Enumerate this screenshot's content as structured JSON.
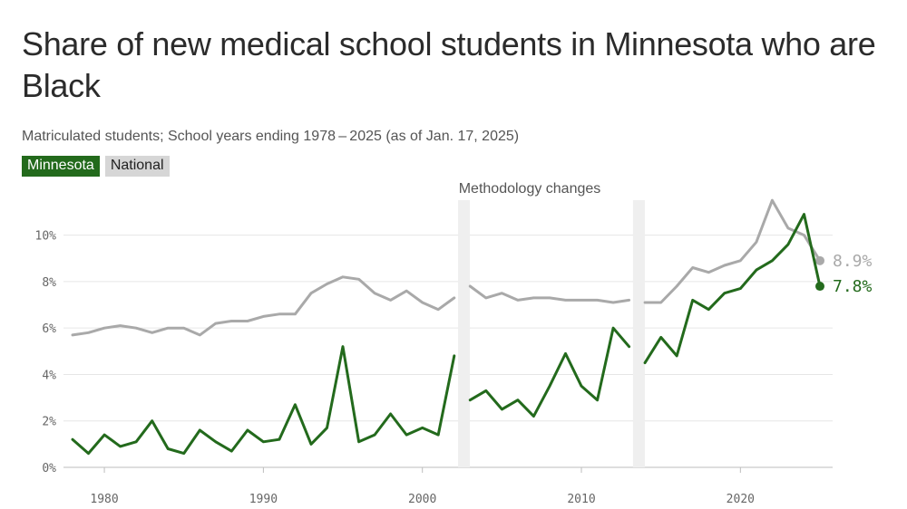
{
  "chart_data": {
    "type": "line",
    "title": "Share of new medical school students in Minnesota who are Black",
    "subtitle": "Matriculated students; School years ending 1978 – 2025 (as of Jan. 17, 2025)",
    "legend": [
      "Minnesota",
      "National"
    ],
    "annotation": "Methodology changes",
    "methodology_change_years": [
      2003,
      2014
    ],
    "x_ticks": [
      1980,
      1990,
      2000,
      2010,
      2020
    ],
    "x_tick_labels": [
      "1980",
      "1990",
      "2000",
      "2010",
      "2020"
    ],
    "y_ticks": [
      0,
      2,
      4,
      6,
      8,
      10
    ],
    "y_tick_labels": [
      "0%",
      "2%",
      "4%",
      "6%",
      "8%",
      "10%"
    ],
    "xlim": [
      1978,
      2025
    ],
    "ylim": [
      0,
      11
    ],
    "grid": true,
    "series": [
      {
        "name": "National",
        "color": "#a9a9a9",
        "end_label": "8.9%",
        "segments": [
          {
            "x": [
              1978,
              1979,
              1980,
              1981,
              1982,
              1983,
              1984,
              1985,
              1986,
              1987,
              1988,
              1989,
              1990,
              1991,
              1992,
              1993,
              1994,
              1995,
              1996,
              1997,
              1998,
              1999,
              2000,
              2001,
              2002
            ],
            "y": [
              5.7,
              5.8,
              6.0,
              6.1,
              6.0,
              5.8,
              6.0,
              6.0,
              5.7,
              6.2,
              6.3,
              6.3,
              6.5,
              6.6,
              6.6,
              7.5,
              7.9,
              8.2,
              8.1,
              7.5,
              7.2,
              7.6,
              7.1,
              6.8,
              7.3
            ]
          },
          {
            "x": [
              2003,
              2004,
              2005,
              2006,
              2007,
              2008,
              2009,
              2010,
              2011,
              2012,
              2013
            ],
            "y": [
              7.8,
              7.3,
              7.5,
              7.2,
              7.3,
              7.3,
              7.2,
              7.2,
              7.2,
              7.1,
              7.2
            ]
          },
          {
            "x": [
              2014,
              2015,
              2016,
              2017,
              2018,
              2019,
              2020,
              2021,
              2022,
              2023,
              2024,
              2025
            ],
            "y": [
              7.1,
              7.1,
              7.8,
              8.6,
              8.4,
              8.7,
              8.9,
              9.7,
              11.5,
              10.3,
              10.0,
              8.9
            ]
          }
        ]
      },
      {
        "name": "Minnesota",
        "color": "#236a1c",
        "end_label": "7.8%",
        "segments": [
          {
            "x": [
              1978,
              1979,
              1980,
              1981,
              1982,
              1983,
              1984,
              1985,
              1986,
              1987,
              1988,
              1989,
              1990,
              1991,
              1992,
              1993,
              1994,
              1995,
              1996,
              1997,
              1998,
              1999,
              2000,
              2001,
              2002
            ],
            "y": [
              1.2,
              0.6,
              1.4,
              0.9,
              1.1,
              2.0,
              0.8,
              0.6,
              1.6,
              1.1,
              0.7,
              1.6,
              1.1,
              1.2,
              2.7,
              1.0,
              1.7,
              5.2,
              1.1,
              1.4,
              2.3,
              1.4,
              1.7,
              1.4,
              4.8
            ]
          },
          {
            "x": [
              2003,
              2004,
              2005,
              2006,
              2007,
              2008,
              2009,
              2010,
              2011,
              2012,
              2013
            ],
            "y": [
              2.9,
              3.3,
              2.5,
              2.9,
              2.2,
              3.5,
              4.9,
              3.5,
              2.9,
              6.0,
              5.2
            ]
          },
          {
            "x": [
              2014,
              2015,
              2016,
              2017,
              2018,
              2019,
              2020,
              2021,
              2022,
              2023,
              2024,
              2025
            ],
            "y": [
              4.5,
              5.6,
              4.8,
              7.2,
              6.8,
              7.5,
              7.7,
              8.5,
              8.9,
              9.6,
              10.9,
              7.8
            ]
          }
        ]
      }
    ]
  }
}
